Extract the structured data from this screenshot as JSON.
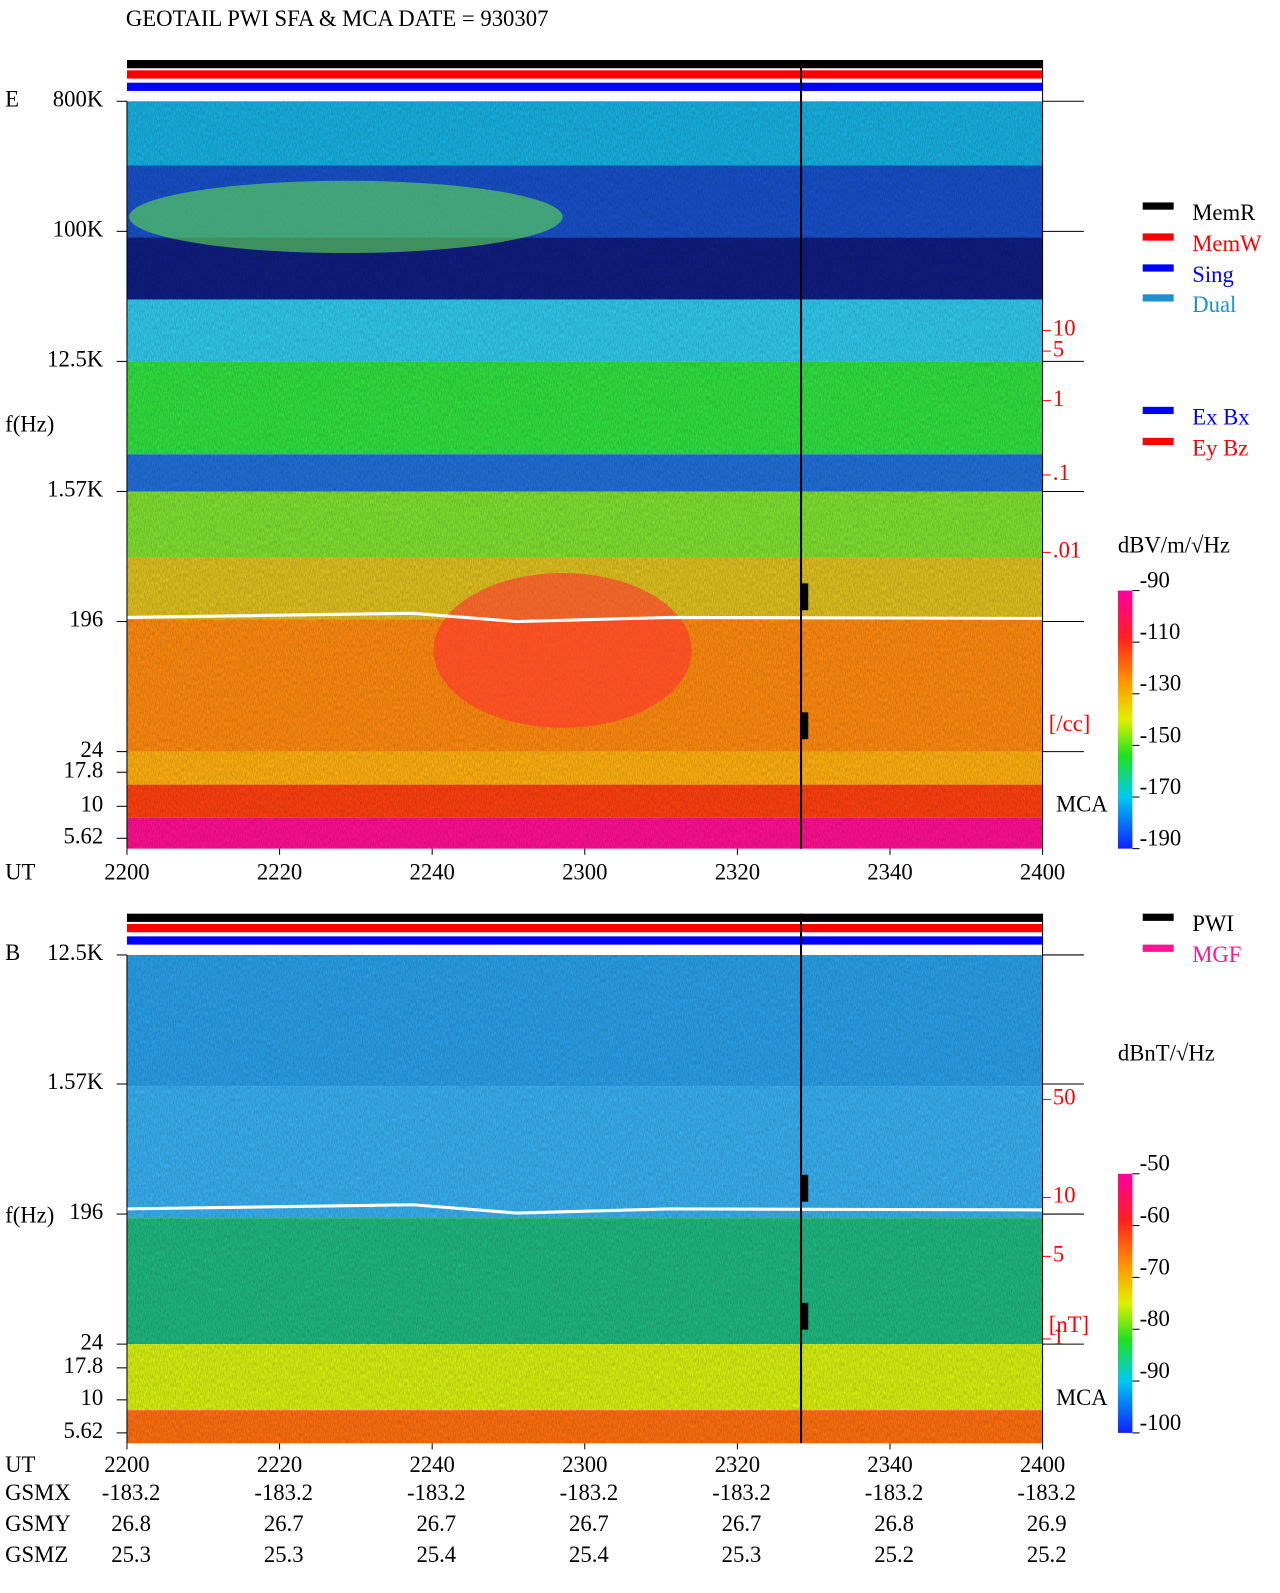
{
  "title": "GEOTAIL   PWI SFA & MCA   DATE = 930307",
  "panels": [
    {
      "label": "E",
      "ylabel": "f(Hz)",
      "freq_ticks": [
        "800K",
        "100K",
        "12.5K",
        "1.57K",
        "196",
        "24",
        "17.8",
        "10",
        "5.62"
      ],
      "time_label": "UT",
      "time_ticks": [
        2200,
        2220,
        2240,
        2300,
        2320,
        2340,
        2400
      ],
      "right_ticks": [
        "10",
        "5",
        "1",
        ".1",
        ".01"
      ],
      "right_unit": "[/cc]",
      "mca": "MCA",
      "legend": [
        {
          "name": "MemR",
          "color": "#000000"
        },
        {
          "name": "MemW",
          "color": "#ff0000"
        },
        {
          "name": "Sing",
          "color": "#0000ff"
        },
        {
          "name": "Dual",
          "color": "#1e90d0"
        }
      ],
      "legend2": [
        {
          "name": "Ex Bx",
          "color": "#0000ff"
        },
        {
          "name": "Ey Bz",
          "color": "#ff0000"
        }
      ],
      "colorbar": {
        "unit": "dBV/m/√Hz",
        "clim": [
          -190,
          -90
        ],
        "ticks": [
          -90,
          -110,
          -130,
          -150,
          -170,
          -190
        ]
      }
    },
    {
      "label": "B",
      "ylabel": "f(Hz)",
      "freq_ticks": [
        "12.5K",
        "1.57K",
        "196",
        "24",
        "17.8",
        "10",
        "5.62"
      ],
      "time_label": "UT",
      "time_ticks": [
        2200,
        2220,
        2240,
        2300,
        2320,
        2340,
        2400
      ],
      "right_ticks": [
        "50",
        "10",
        "5",
        "1"
      ],
      "right_unit": "[nT]",
      "mca": "MCA",
      "legend": [
        {
          "name": "PWI",
          "color": "#000000"
        },
        {
          "name": "MGF",
          "color": "#ff1493"
        }
      ],
      "colorbar": {
        "unit": "dBnT/√Hz",
        "clim": [
          -100,
          -50
        ],
        "ticks": [
          -50,
          -60,
          -70,
          -80,
          -90,
          -100
        ]
      }
    }
  ],
  "orbit": [
    {
      "name": "GSMX",
      "values": [
        "-183.2",
        "-183.2",
        "-183.2",
        "-183.2",
        "-183.2",
        "-183.2",
        "-183.2"
      ]
    },
    {
      "name": "GSMY",
      "values": [
        "26.8",
        "26.7",
        "26.7",
        "26.7",
        "26.7",
        "26.8",
        "26.9"
      ]
    },
    {
      "name": "GSMZ",
      "values": [
        "25.3",
        "25.3",
        "25.4",
        "25.4",
        "25.3",
        "25.2",
        "25.2"
      ]
    }
  ]
}
